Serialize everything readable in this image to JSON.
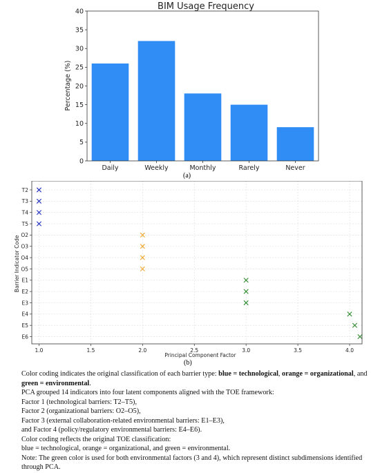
{
  "chart_data": [
    {
      "type": "bar",
      "title": "BIM Usage Frequency",
      "xlabel": "",
      "ylabel": "Percentage (%)",
      "categories": [
        "Daily",
        "Weekly",
        "Monthly",
        "Rarely",
        "Never"
      ],
      "values": [
        26,
        32,
        18,
        15,
        9
      ],
      "ylim": [
        0,
        40
      ],
      "yticks": [
        0,
        5,
        10,
        15,
        20,
        25,
        30,
        35,
        40
      ],
      "color": "#2f8df5",
      "grid": false
    },
    {
      "type": "scatter",
      "title": "",
      "xlabel": "Principal Component Factor",
      "ylabel": "Barrier Indicator Code",
      "marker": "x",
      "xlim": [
        0.93,
        4.12
      ],
      "xticks": [
        "1.0",
        "1.5",
        "2.0",
        "2.5",
        "3.0",
        "3.5",
        "4.0"
      ],
      "yticks": [
        "T2",
        "T3",
        "T4",
        "T5",
        "O2",
        "O3",
        "O4",
        "O5",
        "E1",
        "E2",
        "E3",
        "E4",
        "E5",
        "E6"
      ],
      "grid": true,
      "points": [
        {
          "label": "T2",
          "x": 1.0,
          "color": "#1f2fbf"
        },
        {
          "label": "T3",
          "x": 1.0,
          "color": "#1f2fbf"
        },
        {
          "label": "T4",
          "x": 1.0,
          "color": "#1f2fbf"
        },
        {
          "label": "T5",
          "x": 1.0,
          "color": "#1f2fbf"
        },
        {
          "label": "O2",
          "x": 2.0,
          "color": "#f0a830"
        },
        {
          "label": "O3",
          "x": 2.0,
          "color": "#f0a830"
        },
        {
          "label": "O4",
          "x": 2.0,
          "color": "#f0a830"
        },
        {
          "label": "O5",
          "x": 2.0,
          "color": "#f0a830"
        },
        {
          "label": "E1",
          "x": 3.0,
          "color": "#2e8b2e"
        },
        {
          "label": "E2",
          "x": 3.0,
          "color": "#2e8b2e"
        },
        {
          "label": "E3",
          "x": 3.0,
          "color": "#2e8b2e"
        },
        {
          "label": "E4",
          "x": 4.0,
          "color": "#2e8b2e"
        },
        {
          "label": "E5",
          "x": 4.05,
          "color": "#2e8b2e"
        },
        {
          "label": "E6",
          "x": 4.1,
          "color": "#2e8b2e"
        }
      ]
    }
  ],
  "panel_labels": {
    "a": "(a)",
    "b": "(b)"
  },
  "caption": {
    "line1_pre": "Color coding indicates the original classification of each barrier type: ",
    "line1_blue": "blue = technological",
    "line1_sep1": ", ",
    "line1_orange": "orange = organizational",
    "line1_sep2": ", and ",
    "line1_green": "green = environmental",
    "line1_end": ".",
    "line2": "PCA grouped 14 indicators into four latent components aligned with the TOE framework:",
    "line3": "Factor 1 (technological barriers: T2–T5),",
    "line4": "Factor 2 (organizational barriers: O2–O5),",
    "line5": "Factor 3 (external collaboration-related environmental barriers: E1–E3),",
    "line6": "and Factor 4 (policy/regulatory environmental barriers: E4–E6).",
    "line7": "Color coding reflects the original TOE classification:",
    "line8": "blue = technological, orange = organizational, and green = environmental.",
    "line9": "Note: The green color is used for both environmental factors (3 and 4), which represent distinct subdimensions identified through PCA."
  }
}
